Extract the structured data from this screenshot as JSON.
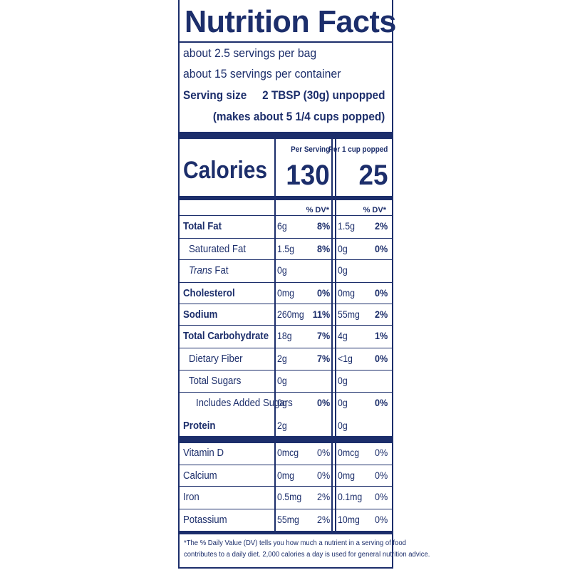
{
  "title": "Nutrition Facts",
  "servings": [
    "about 2.5 servings per bag",
    "about 15 servings per container"
  ],
  "serving_size": {
    "label": "Serving size",
    "value": "2 TBSP (30g) unpopped",
    "note": "(makes about 5 1/4 cups popped)"
  },
  "calories": {
    "label": "Calories",
    "col1_header": "Per Serving",
    "col2_header": "Per 1 cup popped",
    "col1": "130",
    "col2": "25"
  },
  "dv_header": "% DV*",
  "rows": [
    {
      "name": "Total Fat",
      "v1": "6g",
      "p1": "8%",
      "v2": "1.5g",
      "p2": "2%"
    },
    {
      "name": "Saturated Fat",
      "v1": "1.5g",
      "p1": "8%",
      "v2": "0g",
      "p2": "0%"
    },
    {
      "name": "Trans",
      "name_suffix": " Fat",
      "v1": "0g",
      "p1": "",
      "v2": "0g",
      "p2": ""
    },
    {
      "name": "Cholesterol",
      "v1": "0mg",
      "p1": "0%",
      "v2": "0mg",
      "p2": "0%"
    },
    {
      "name": "Sodium",
      "v1": "260mg",
      "p1": "11%",
      "v2": "55mg",
      "p2": "2%"
    },
    {
      "name": "Total Carbohydrate",
      "v1": "18g",
      "p1": "7%",
      "v2": "4g",
      "p2": "1%"
    },
    {
      "name": "Dietary Fiber",
      "v1": "2g",
      "p1": "7%",
      "v2": "<1g",
      "p2": "0%"
    },
    {
      "name": "Total Sugars",
      "v1": "0g",
      "p1": "",
      "v2": "0g",
      "p2": ""
    },
    {
      "name": "Includes Added Sugars",
      "v1": "0g",
      "p1": "0%",
      "v2": "0g",
      "p2": "0%"
    },
    {
      "name": "Protein",
      "v1": "2g",
      "p1": "",
      "v2": "0g",
      "p2": ""
    },
    {
      "name": "Vitamin D",
      "v1": "0mcg",
      "p1": "0%",
      "v2": "0mcg",
      "p2": "0%"
    },
    {
      "name": "Calcium",
      "v1": "0mg",
      "p1": "0%",
      "v2": "0mg",
      "p2": "0%"
    },
    {
      "name": "Iron",
      "v1": "0.5mg",
      "p1": "2%",
      "v2": "0.1mg",
      "p2": "0%"
    },
    {
      "name": "Potassium",
      "v1": "55mg",
      "p1": "2%",
      "v2": "10mg",
      "p2": "0%"
    }
  ],
  "footnote": [
    "*The % Daily Value (DV) tells you how much a nutrient in a serving of food",
    "contributes to a daily diet. 2,000 calories a day is used for general nutrition advice."
  ],
  "colors": {
    "ink": "#1c2e6b",
    "background": "#ffffff"
  }
}
